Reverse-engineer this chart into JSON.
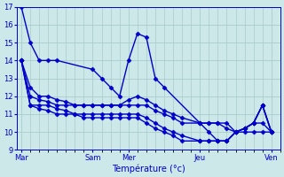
{
  "xlabel": "Température (°c)",
  "bg_color": "#cce8e8",
  "grid_color": "#aacccc",
  "line_color": "#0000cc",
  "marker": "D",
  "markersize": 2.5,
  "linewidth": 1.0,
  "ylim": [
    9,
    17
  ],
  "yticks": [
    9,
    10,
    11,
    12,
    13,
    14,
    15,
    16,
    17
  ],
  "day_positions": [
    0,
    8,
    12,
    20,
    28
  ],
  "day_labels": [
    "Mar",
    "Sam",
    "Mer",
    "Jeu",
    "Ven"
  ],
  "xlim": [
    -0.5,
    29
  ],
  "series": [
    {
      "x": [
        0,
        1,
        2,
        3,
        4,
        8,
        9,
        10,
        11,
        12,
        13,
        14,
        15,
        16,
        20,
        21,
        22,
        23,
        24,
        25,
        26,
        27,
        28
      ],
      "y": [
        17,
        15,
        14,
        14,
        14,
        13.5,
        13,
        12.5,
        12,
        14,
        15.5,
        15.3,
        13,
        12.5,
        10.5,
        10.5,
        10.5,
        10.5,
        10,
        10,
        10,
        10,
        10
      ]
    },
    {
      "x": [
        0,
        1,
        2,
        3,
        4,
        5,
        6,
        7,
        8,
        9,
        10,
        11,
        12,
        13,
        14,
        15,
        16,
        17,
        18,
        20,
        21,
        22,
        23,
        24,
        25,
        26,
        27,
        28
      ],
      "y": [
        14,
        12.5,
        12,
        12,
        11.8,
        11.7,
        11.5,
        11.5,
        11.5,
        11.5,
        11.5,
        11.5,
        11.8,
        12,
        11.8,
        11.5,
        11.2,
        11,
        10.8,
        10.5,
        10.5,
        10.5,
        10.2,
        10,
        10.2,
        10.5,
        10.5,
        10
      ]
    },
    {
      "x": [
        0,
        1,
        2,
        3,
        4,
        5,
        6,
        7,
        8,
        9,
        10,
        11,
        12,
        13,
        14,
        15,
        16,
        17,
        18,
        20,
        21,
        22,
        23,
        24,
        25,
        26,
        27,
        28
      ],
      "y": [
        14,
        12,
        11.8,
        11.7,
        11.5,
        11.5,
        11.5,
        11.5,
        11.5,
        11.5,
        11.5,
        11.5,
        11.5,
        11.5,
        11.5,
        11.2,
        11,
        10.8,
        10.5,
        10.5,
        10,
        9.5,
        9.5,
        10,
        10.2,
        10.5,
        11.5,
        10
      ]
    },
    {
      "x": [
        0,
        1,
        2,
        3,
        4,
        5,
        6,
        7,
        8,
        9,
        10,
        11,
        12,
        13,
        14,
        15,
        16,
        17,
        18,
        20,
        21,
        22,
        23,
        24,
        25,
        26,
        27,
        28
      ],
      "y": [
        14,
        11.5,
        11.5,
        11.5,
        11.3,
        11.2,
        11.0,
        11.0,
        11.0,
        11.0,
        11.0,
        11.0,
        11.0,
        11.0,
        10.8,
        10.5,
        10.2,
        10.0,
        9.8,
        9.5,
        9.5,
        9.5,
        9.5,
        10,
        10.2,
        10.5,
        11.5,
        10
      ]
    },
    {
      "x": [
        0,
        1,
        2,
        3,
        4,
        5,
        6,
        7,
        8,
        9,
        10,
        11,
        12,
        13,
        14,
        15,
        16,
        17,
        18,
        20,
        21,
        22,
        23,
        24,
        25,
        26,
        27,
        28
      ],
      "y": [
        14,
        11.5,
        11.3,
        11.2,
        11.0,
        11.0,
        11.0,
        10.8,
        10.8,
        10.8,
        10.8,
        10.8,
        10.8,
        10.8,
        10.5,
        10.2,
        10.0,
        9.8,
        9.5,
        9.5,
        9.5,
        9.5,
        9.5,
        10,
        10.2,
        10.5,
        11.5,
        10
      ]
    }
  ]
}
